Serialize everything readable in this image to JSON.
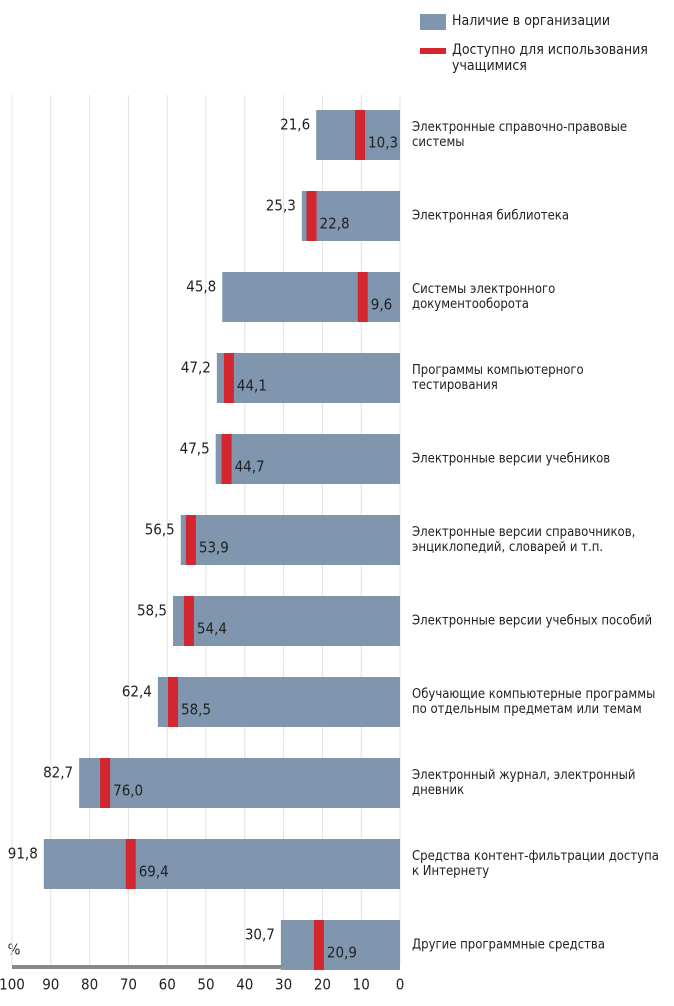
{
  "chart_data": {
    "type": "barh",
    "y_label": "%",
    "categories": [
      "Другие программные средства",
      "Средства контент-фильтрации доступа к Интернету",
      "Электронный журнал, электронный дневник",
      "Обучающие компьютерные программы по отдельным предметам или темам",
      "Электронные версии учебных пособий",
      "Электронные версии справочников, энциклопедий, словарей и т.п.",
      "Электронные версии учебников",
      "Программы компьютерного тестирования",
      "Системы электронного документооборота",
      "Электронная библиотека",
      "Электронные справочно-правовые системы"
    ],
    "series": [
      {
        "name": "Наличие в организации",
        "color": "#7f96ae",
        "values": [
          30.7,
          91.8,
          82.7,
          62.4,
          58.5,
          56.5,
          47.5,
          47.2,
          45.8,
          25.3,
          21.6
        ],
        "value_labels": [
          "30,7",
          "91,8",
          "82,7",
          "62,4",
          "58,5",
          "56,5",
          "47,5",
          "47,2",
          "45,8",
          "25,3",
          "21,6"
        ]
      },
      {
        "name": "Доступно для использования учащимися",
        "color": "#d4262e",
        "values": [
          20.9,
          69.4,
          76.0,
          58.5,
          54.4,
          53.9,
          44.7,
          44.1,
          9.6,
          22.8,
          10.3
        ],
        "value_labels": [
          "20,9",
          "69,4",
          "76,0",
          "58,5",
          "54,4",
          "53,9",
          "44,7",
          "44,1",
          "9,6",
          "22,8",
          "10,3"
        ]
      }
    ],
    "xlim": [
      0,
      100
    ],
    "xticks": [
      0,
      10,
      20,
      30,
      40,
      50,
      60,
      70,
      80,
      90,
      100
    ],
    "x_reversed": true,
    "grid": true
  }
}
